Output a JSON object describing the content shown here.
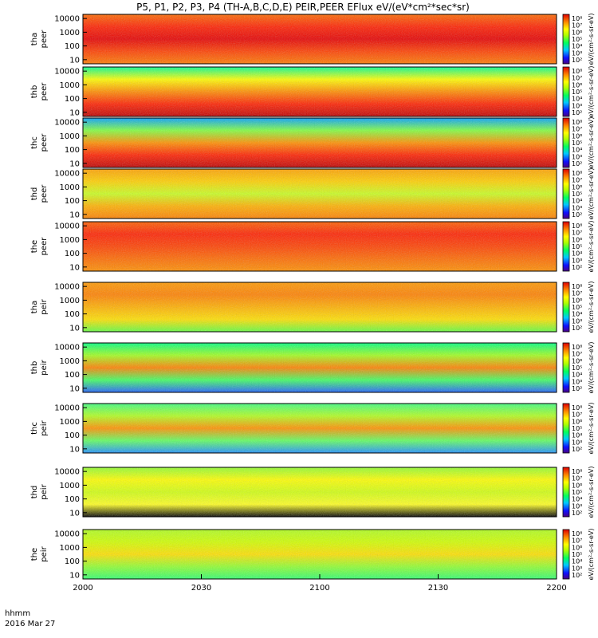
{
  "chart_data": {
    "type": "heatmap",
    "title": "P5, P1, P2, P3, P4 (TH-A,B,C,D,E) PEIR,PEER EFlux eV/(eV*cm²*sec*sr)",
    "date_label": "2016 Mar 27",
    "time_label": "hhmm",
    "x_ticks": [
      "2000",
      "2030",
      "2100",
      "2130",
      "2200"
    ],
    "xlim": [
      "20:00",
      "22:00"
    ],
    "y_ticks": [
      "10000",
      "1000",
      "100",
      "10"
    ],
    "y_scale": "log",
    "ylim": [
      5,
      20000
    ],
    "colorbar_ticks": [
      "10⁸",
      "10⁷",
      "10⁶",
      "10⁵",
      "10⁴",
      "10³",
      "10²"
    ],
    "colorbar_label": "eV/(cm²-s-sr-eV)",
    "panels": [
      {
        "ylabel_top": "tha",
        "ylabel_bottom": "peer"
      },
      {
        "ylabel_top": "thb",
        "ylabel_bottom": "peer"
      },
      {
        "ylabel_top": "thc",
        "ylabel_bottom": "peer"
      },
      {
        "ylabel_top": "thd",
        "ylabel_bottom": "peer"
      },
      {
        "ylabel_top": "the",
        "ylabel_bottom": "peer"
      },
      {
        "ylabel_top": "tha",
        "ylabel_bottom": "peir"
      },
      {
        "ylabel_top": "thb",
        "ylabel_bottom": "peir"
      },
      {
        "ylabel_top": "thc",
        "ylabel_bottom": "peir"
      },
      {
        "ylabel_top": "thd",
        "ylabel_bottom": "peir"
      },
      {
        "ylabel_top": "the",
        "ylabel_bottom": "peir"
      }
    ]
  }
}
